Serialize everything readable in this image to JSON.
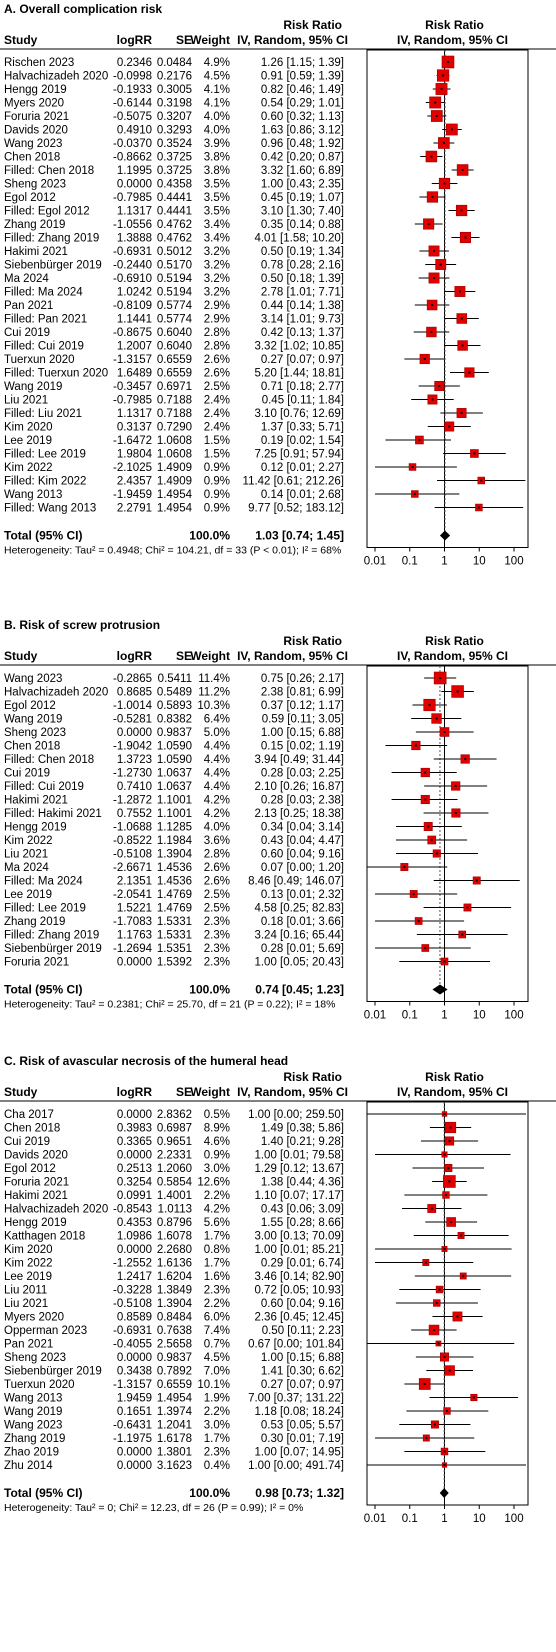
{
  "headers": {
    "study": "Study",
    "logrr": "logRR",
    "se": "SE",
    "weight": "Weight",
    "rr_col_top": "Risk Ratio",
    "rr_col_bottom": "IV, Random, 95% CI",
    "plot_col_top": "Risk Ratio",
    "plot_col_bottom": "IV, Random, 95% CI"
  },
  "chart_data": [
    {
      "type": "forest",
      "title": "A. Overall complication risk",
      "scale": "log",
      "xlim": [
        0.01,
        100
      ],
      "ticks": [
        "0.01",
        "0.1",
        "1",
        "10",
        "100"
      ],
      "studies": [
        {
          "name": "Rischen 2023",
          "logrr": "0.2346",
          "se": "0.0484",
          "weight": "4.9%",
          "rr": "1.26",
          "lo": "1.15",
          "hi": "1.39"
        },
        {
          "name": "Halvachizadeh 2020",
          "logrr": "-0.0998",
          "se": "0.2176",
          "weight": "4.5%",
          "rr": "0.91",
          "lo": "0.59",
          "hi": "1.39"
        },
        {
          "name": "Hengg 2019",
          "logrr": "-0.1933",
          "se": "0.3005",
          "weight": "4.1%",
          "rr": "0.82",
          "lo": "0.46",
          "hi": "1.49"
        },
        {
          "name": "Myers 2020",
          "logrr": "-0.6144",
          "se": "0.3198",
          "weight": "4.1%",
          "rr": "0.54",
          "lo": "0.29",
          "hi": "1.01"
        },
        {
          "name": "Foruria 2021",
          "logrr": "-0.5075",
          "se": "0.3207",
          "weight": "4.0%",
          "rr": "0.60",
          "lo": "0.32",
          "hi": "1.13"
        },
        {
          "name": "Davids 2020",
          "logrr": "0.4910",
          "se": "0.3293",
          "weight": "4.0%",
          "rr": "1.63",
          "lo": "0.86",
          "hi": "3.12"
        },
        {
          "name": "Wang 2023",
          "logrr": "-0.0370",
          "se": "0.3524",
          "weight": "3.9%",
          "rr": "0.96",
          "lo": "0.48",
          "hi": "1.92"
        },
        {
          "name": "Chen 2018",
          "logrr": "-0.8662",
          "se": "0.3725",
          "weight": "3.8%",
          "rr": "0.42",
          "lo": "0.20",
          "hi": "0.87"
        },
        {
          "name": "Filled: Chen 2018",
          "logrr": "1.1995",
          "se": "0.3725",
          "weight": "3.8%",
          "rr": "3.32",
          "lo": "1.60",
          "hi": "6.89"
        },
        {
          "name": "Sheng 2023",
          "logrr": "0.0000",
          "se": "0.4358",
          "weight": "3.5%",
          "rr": "1.00",
          "lo": "0.43",
          "hi": "2.35"
        },
        {
          "name": "Egol 2012",
          "logrr": "-0.7985",
          "se": "0.4441",
          "weight": "3.5%",
          "rr": "0.45",
          "lo": "0.19",
          "hi": "1.07"
        },
        {
          "name": "Filled: Egol 2012",
          "logrr": "1.1317",
          "se": "0.4441",
          "weight": "3.5%",
          "rr": "3.10",
          "lo": "1.30",
          "hi": "7.40"
        },
        {
          "name": "Zhang 2019",
          "logrr": "-1.0556",
          "se": "0.4762",
          "weight": "3.4%",
          "rr": "0.35",
          "lo": "0.14",
          "hi": "0.88"
        },
        {
          "name": "Filled: Zhang 2019",
          "logrr": "1.3888",
          "se": "0.4762",
          "weight": "3.4%",
          "rr": "4.01",
          "lo": "1.58",
          "hi": "10.20"
        },
        {
          "name": "Hakimi 2021",
          "logrr": "-0.6931",
          "se": "0.5012",
          "weight": "3.2%",
          "rr": "0.50",
          "lo": "0.19",
          "hi": "1.34"
        },
        {
          "name": "Siebenbürger 2019",
          "logrr": "-0.2440",
          "se": "0.5170",
          "weight": "3.2%",
          "rr": "0.78",
          "lo": "0.28",
          "hi": "2.16"
        },
        {
          "name": "Ma 2024",
          "logrr": "-0.6910",
          "se": "0.5194",
          "weight": "3.2%",
          "rr": "0.50",
          "lo": "0.18",
          "hi": "1.39"
        },
        {
          "name": "Filled: Ma 2024",
          "logrr": "1.0242",
          "se": "0.5194",
          "weight": "3.2%",
          "rr": "2.78",
          "lo": "1.01",
          "hi": "7.71"
        },
        {
          "name": "Pan 2021",
          "logrr": "-0.8109",
          "se": "0.5774",
          "weight": "2.9%",
          "rr": "0.44",
          "lo": "0.14",
          "hi": "1.38"
        },
        {
          "name": "Filled: Pan 2021",
          "logrr": "1.1441",
          "se": "0.5774",
          "weight": "2.9%",
          "rr": "3.14",
          "lo": "1.01",
          "hi": "9.73"
        },
        {
          "name": "Cui 2019",
          "logrr": "-0.8675",
          "se": "0.6040",
          "weight": "2.8%",
          "rr": "0.42",
          "lo": "0.13",
          "hi": "1.37"
        },
        {
          "name": "Filled: Cui 2019",
          "logrr": "1.2007",
          "se": "0.6040",
          "weight": "2.8%",
          "rr": "3.32",
          "lo": "1.02",
          "hi": "10.85"
        },
        {
          "name": "Tuerxun 2020",
          "logrr": "-1.3157",
          "se": "0.6559",
          "weight": "2.6%",
          "rr": "0.27",
          "lo": "0.07",
          "hi": "0.97"
        },
        {
          "name": "Filled: Tuerxun 2020",
          "logrr": "1.6489",
          "se": "0.6559",
          "weight": "2.6%",
          "rr": "5.20",
          "lo": "1.44",
          "hi": "18.81"
        },
        {
          "name": "Wang 2019",
          "logrr": "-0.3457",
          "se": "0.6971",
          "weight": "2.5%",
          "rr": "0.71",
          "lo": "0.18",
          "hi": "2.77"
        },
        {
          "name": "Liu 2021",
          "logrr": "-0.7985",
          "se": "0.7188",
          "weight": "2.4%",
          "rr": "0.45",
          "lo": "0.11",
          "hi": "1.84"
        },
        {
          "name": "Filled: Liu 2021",
          "logrr": "1.1317",
          "se": "0.7188",
          "weight": "2.4%",
          "rr": "3.10",
          "lo": "0.76",
          "hi": "12.69"
        },
        {
          "name": "Kim 2020",
          "logrr": "0.3137",
          "se": "0.7290",
          "weight": "2.4%",
          "rr": "1.37",
          "lo": "0.33",
          "hi": "5.71"
        },
        {
          "name": "Lee 2019",
          "logrr": "-1.6472",
          "se": "1.0608",
          "weight": "1.5%",
          "rr": "0.19",
          "lo": "0.02",
          "hi": "1.54"
        },
        {
          "name": "Filled: Lee 2019",
          "logrr": "1.9804",
          "se": "1.0608",
          "weight": "1.5%",
          "rr": "7.25",
          "lo": "0.91",
          "hi": "57.94"
        },
        {
          "name": "Kim 2022",
          "logrr": "-2.1025",
          "se": "1.4909",
          "weight": "0.9%",
          "rr": "0.12",
          "lo": "0.01",
          "hi": "2.27"
        },
        {
          "name": "Filled: Kim 2022",
          "logrr": "2.4357",
          "se": "1.4909",
          "weight": "0.9%",
          "rr": "11.42",
          "lo": "0.61",
          "hi": "212.26"
        },
        {
          "name": "Wang 2013",
          "logrr": "-1.9459",
          "se": "1.4954",
          "weight": "0.9%",
          "rr": "0.14",
          "lo": "0.01",
          "hi": "2.68"
        },
        {
          "name": "Filled: Wang 2013",
          "logrr": "2.2791",
          "se": "1.4954",
          "weight": "0.9%",
          "rr": "9.77",
          "lo": "0.52",
          "hi": "183.12"
        }
      ],
      "total": {
        "label": "Total (95% CI)",
        "weight": "100.0%",
        "rr": "1.03",
        "lo": "0.74",
        "hi": "1.45"
      },
      "heterogeneity": "Heterogeneity: Tau² = 0.4948; Chi² = 104.21, df = 33 (P < 0.01); I² = 68%"
    },
    {
      "type": "forest",
      "title": "B. Risk of screw protrusion",
      "scale": "log",
      "xlim": [
        0.01,
        100
      ],
      "ticks": [
        "0.01",
        "0.1",
        "1",
        "10",
        "100"
      ],
      "studies": [
        {
          "name": "Wang 2023",
          "logrr": "-0.2865",
          "se": "0.5411",
          "weight": "11.4%",
          "rr": "0.75",
          "lo": "0.26",
          "hi": "2.17"
        },
        {
          "name": "Halvachizadeh 2020",
          "logrr": "0.8685",
          "se": "0.5489",
          "weight": "11.2%",
          "rr": "2.38",
          "lo": "0.81",
          "hi": "6.99"
        },
        {
          "name": "Egol 2012",
          "logrr": "-1.0014",
          "se": "0.5893",
          "weight": "10.3%",
          "rr": "0.37",
          "lo": "0.12",
          "hi": "1.17"
        },
        {
          "name": "Wang 2019",
          "logrr": "-0.5281",
          "se": "0.8382",
          "weight": "6.4%",
          "rr": "0.59",
          "lo": "0.11",
          "hi": "3.05"
        },
        {
          "name": "Sheng 2023",
          "logrr": "0.0000",
          "se": "0.9837",
          "weight": "5.0%",
          "rr": "1.00",
          "lo": "0.15",
          "hi": "6.88"
        },
        {
          "name": "Chen 2018",
          "logrr": "-1.9042",
          "se": "1.0590",
          "weight": "4.4%",
          "rr": "0.15",
          "lo": "0.02",
          "hi": "1.19"
        },
        {
          "name": "Filled: Chen 2018",
          "logrr": "1.3723",
          "se": "1.0590",
          "weight": "4.4%",
          "rr": "3.94",
          "lo": "0.49",
          "hi": "31.44"
        },
        {
          "name": "Cui 2019",
          "logrr": "-1.2730",
          "se": "1.0637",
          "weight": "4.4%",
          "rr": "0.28",
          "lo": "0.03",
          "hi": "2.25"
        },
        {
          "name": "Filled: Cui 2019",
          "logrr": "0.7410",
          "se": "1.0637",
          "weight": "4.4%",
          "rr": "2.10",
          "lo": "0.26",
          "hi": "16.87"
        },
        {
          "name": "Hakimi 2021",
          "logrr": "-1.2872",
          "se": "1.1001",
          "weight": "4.2%",
          "rr": "0.28",
          "lo": "0.03",
          "hi": "2.38"
        },
        {
          "name": "Filled: Hakimi 2021",
          "logrr": "0.7552",
          "se": "1.1001",
          "weight": "4.2%",
          "rr": "2.13",
          "lo": "0.25",
          "hi": "18.38"
        },
        {
          "name": "Hengg 2019",
          "logrr": "-1.0688",
          "se": "1.1285",
          "weight": "4.0%",
          "rr": "0.34",
          "lo": "0.04",
          "hi": "3.14"
        },
        {
          "name": "Kim 2022",
          "logrr": "-0.8522",
          "se": "1.1984",
          "weight": "3.6%",
          "rr": "0.43",
          "lo": "0.04",
          "hi": "4.47"
        },
        {
          "name": "Liu 2021",
          "logrr": "-0.5108",
          "se": "1.3904",
          "weight": "2.8%",
          "rr": "0.60",
          "lo": "0.04",
          "hi": "9.16"
        },
        {
          "name": "Ma 2024",
          "logrr": "-2.6671",
          "se": "1.4536",
          "weight": "2.6%",
          "rr": "0.07",
          "lo": "0.00",
          "hi": "1.20"
        },
        {
          "name": "Filled: Ma 2024",
          "logrr": "2.1351",
          "se": "1.4536",
          "weight": "2.6%",
          "rr": "8.46",
          "lo": "0.49",
          "hi": "146.07"
        },
        {
          "name": "Lee 2019",
          "logrr": "-2.0541",
          "se": "1.4769",
          "weight": "2.5%",
          "rr": "0.13",
          "lo": "0.01",
          "hi": "2.32"
        },
        {
          "name": "Filled: Lee 2019",
          "logrr": "1.5221",
          "se": "1.4769",
          "weight": "2.5%",
          "rr": "4.58",
          "lo": "0.25",
          "hi": "82.83"
        },
        {
          "name": "Zhang 2019",
          "logrr": "-1.7083",
          "se": "1.5331",
          "weight": "2.3%",
          "rr": "0.18",
          "lo": "0.01",
          "hi": "3.66"
        },
        {
          "name": "Filled: Zhang 2019",
          "logrr": "1.1763",
          "se": "1.5331",
          "weight": "2.3%",
          "rr": "3.24",
          "lo": "0.16",
          "hi": "65.44"
        },
        {
          "name": "Siebenbürger 2019",
          "logrr": "-1.2694",
          "se": "1.5351",
          "weight": "2.3%",
          "rr": "0.28",
          "lo": "0.01",
          "hi": "5.69"
        },
        {
          "name": "Foruria 2021",
          "logrr": "0.0000",
          "se": "1.5392",
          "weight": "2.3%",
          "rr": "1.00",
          "lo": "0.05",
          "hi": "20.43"
        }
      ],
      "total": {
        "label": "Total (95% CI)",
        "weight": "100.0%",
        "rr": "0.74",
        "lo": "0.45",
        "hi": "1.23"
      },
      "heterogeneity": "Heterogeneity: Tau² = 0.2381; Chi² = 25.70, df = 21 (P = 0.22); I² = 18%"
    },
    {
      "type": "forest",
      "title": "C. Risk of avascular necrosis of the humeral head",
      "scale": "log",
      "xlim": [
        0.01,
        100
      ],
      "ticks": [
        "0.01",
        "0.1",
        "1",
        "10",
        "100"
      ],
      "studies": [
        {
          "name": "Cha 2017",
          "logrr": "0.0000",
          "se": "2.8362",
          "weight": "0.5%",
          "rr": "1.00",
          "lo": "0.00",
          "hi": "259.50"
        },
        {
          "name": "Chen 2018",
          "logrr": "0.3983",
          "se": "0.6987",
          "weight": "8.9%",
          "rr": "1.49",
          "lo": "0.38",
          "hi": "5.86"
        },
        {
          "name": "Cui 2019",
          "logrr": "0.3365",
          "se": "0.9651",
          "weight": "4.6%",
          "rr": "1.40",
          "lo": "0.21",
          "hi": "9.28"
        },
        {
          "name": "Davids 2020",
          "logrr": "0.0000",
          "se": "2.2331",
          "weight": "0.9%",
          "rr": "1.00",
          "lo": "0.01",
          "hi": "79.58"
        },
        {
          "name": "Egol 2012",
          "logrr": "0.2513",
          "se": "1.2060",
          "weight": "3.0%",
          "rr": "1.29",
          "lo": "0.12",
          "hi": "13.67"
        },
        {
          "name": "Foruria 2021",
          "logrr": "0.3254",
          "se": "0.5854",
          "weight": "12.6%",
          "rr": "1.38",
          "lo": "0.44",
          "hi": "4.36"
        },
        {
          "name": "Hakimi 2021",
          "logrr": "0.0991",
          "se": "1.4001",
          "weight": "2.2%",
          "rr": "1.10",
          "lo": "0.07",
          "hi": "17.17"
        },
        {
          "name": "Halvachizadeh 2020",
          "logrr": "-0.8543",
          "se": "1.0113",
          "weight": "4.2%",
          "rr": "0.43",
          "lo": "0.06",
          "hi": "3.09"
        },
        {
          "name": "Hengg 2019",
          "logrr": "0.4353",
          "se": "0.8796",
          "weight": "5.6%",
          "rr": "1.55",
          "lo": "0.28",
          "hi": "8.66"
        },
        {
          "name": "Katthagen 2018",
          "logrr": "1.0986",
          "se": "1.6078",
          "weight": "1.7%",
          "rr": "3.00",
          "lo": "0.13",
          "hi": "70.09"
        },
        {
          "name": "Kim 2020",
          "logrr": "0.0000",
          "se": "2.2680",
          "weight": "0.8%",
          "rr": "1.00",
          "lo": "0.01",
          "hi": "85.21"
        },
        {
          "name": "Kim 2022",
          "logrr": "-1.2552",
          "se": "1.6136",
          "weight": "1.7%",
          "rr": "0.29",
          "lo": "0.01",
          "hi": "6.74"
        },
        {
          "name": "Lee 2019",
          "logrr": "1.2417",
          "se": "1.6204",
          "weight": "1.6%",
          "rr": "3.46",
          "lo": "0.14",
          "hi": "82.90"
        },
        {
          "name": "Liu 2011",
          "logrr": "-0.3228",
          "se": "1.3849",
          "weight": "2.3%",
          "rr": "0.72",
          "lo": "0.05",
          "hi": "10.93"
        },
        {
          "name": "Liu 2021",
          "logrr": "-0.5108",
          "se": "1.3904",
          "weight": "2.2%",
          "rr": "0.60",
          "lo": "0.04",
          "hi": "9.16"
        },
        {
          "name": "Myers 2020",
          "logrr": "0.8589",
          "se": "0.8484",
          "weight": "6.0%",
          "rr": "2.36",
          "lo": "0.45",
          "hi": "12.45"
        },
        {
          "name": "Opperman 2023",
          "logrr": "-0.6931",
          "se": "0.7638",
          "weight": "7.4%",
          "rr": "0.50",
          "lo": "0.11",
          "hi": "2.23"
        },
        {
          "name": "Pan 2021",
          "logrr": "-0.4055",
          "se": "2.5658",
          "weight": "0.7%",
          "rr": "0.67",
          "lo": "0.00",
          "hi": "101.84"
        },
        {
          "name": "Sheng 2023",
          "logrr": "0.0000",
          "se": "0.9837",
          "weight": "4.5%",
          "rr": "1.00",
          "lo": "0.15",
          "hi": "6.88"
        },
        {
          "name": "Siebenbürger 2019",
          "logrr": "0.3438",
          "se": "0.7892",
          "weight": "7.0%",
          "rr": "1.41",
          "lo": "0.30",
          "hi": "6.62"
        },
        {
          "name": "Tuerxun 2020",
          "logrr": "-1.3157",
          "se": "0.6559",
          "weight": "10.1%",
          "rr": "0.27",
          "lo": "0.07",
          "hi": "0.97"
        },
        {
          "name": "Wang 2013",
          "logrr": "1.9459",
          "se": "1.4954",
          "weight": "1.9%",
          "rr": "7.00",
          "lo": "0.37",
          "hi": "131.22"
        },
        {
          "name": "Wang 2019",
          "logrr": "0.1651",
          "se": "1.3974",
          "weight": "2.2%",
          "rr": "1.18",
          "lo": "0.08",
          "hi": "18.24"
        },
        {
          "name": "Wang 2023",
          "logrr": "-0.6431",
          "se": "1.2041",
          "weight": "3.0%",
          "rr": "0.53",
          "lo": "0.05",
          "hi": "5.57"
        },
        {
          "name": "Zhang 2019",
          "logrr": "-1.1975",
          "se": "1.6178",
          "weight": "1.7%",
          "rr": "0.30",
          "lo": "0.01",
          "hi": "7.19"
        },
        {
          "name": "Zhao 2019",
          "logrr": "0.0000",
          "se": "1.3801",
          "weight": "2.3%",
          "rr": "1.00",
          "lo": "0.07",
          "hi": "14.95"
        },
        {
          "name": "Zhu 2014",
          "logrr": "0.0000",
          "se": "3.1623",
          "weight": "0.4%",
          "rr": "1.00",
          "lo": "0.00",
          "hi": "491.74"
        }
      ],
      "total": {
        "label": "Total (95% CI)",
        "weight": "100.0%",
        "rr": "0.98",
        "lo": "0.73",
        "hi": "1.32"
      },
      "heterogeneity": "Heterogeneity: Tau² = 0; Chi² = 12.23, df = 26 (P = 0.99); I² = 0%"
    }
  ]
}
